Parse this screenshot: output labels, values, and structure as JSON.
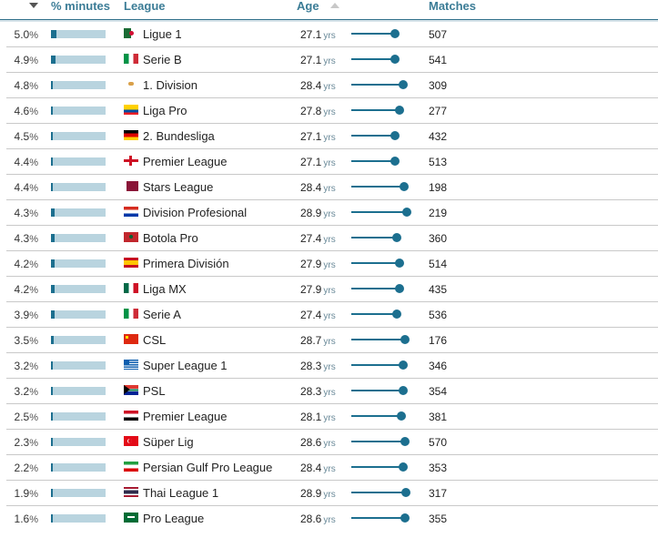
{
  "header": {
    "percent_minutes": "% minutes",
    "league": "League",
    "age": "Age",
    "matches": "Matches",
    "sort_desc_icon": "sort-desc-icon",
    "sort_asc_icon": "sort-asc-icon"
  },
  "colors": {
    "header_text": "#3b7c96",
    "bar_track": "#b9d4df",
    "bar_fill": "#1c6f8f",
    "slider": "#1c6f8f"
  },
  "unit_pct": "%",
  "unit_age": "yrs",
  "rows": [
    {
      "pct": "5.0",
      "fill": 6,
      "flag": "algeria-flag",
      "league": "Ligue 1",
      "age": "27.1",
      "slider": 48,
      "matches": "507"
    },
    {
      "pct": "4.9",
      "fill": 5,
      "flag": "italy-flag",
      "league": "Serie B",
      "age": "27.1",
      "slider": 48,
      "matches": "541"
    },
    {
      "pct": "4.8",
      "fill": 0,
      "flag": "cyprus-flag",
      "league": "1. Division",
      "age": "28.4",
      "slider": 57,
      "matches": "309"
    },
    {
      "pct": "4.6",
      "fill": 0,
      "flag": "ecuador-flag",
      "league": "Liga Pro",
      "age": "27.8",
      "slider": 53,
      "matches": "277"
    },
    {
      "pct": "4.5",
      "fill": 0,
      "flag": "germany-flag",
      "league": "2. Bundesliga",
      "age": "27.1",
      "slider": 48,
      "matches": "432"
    },
    {
      "pct": "4.4",
      "fill": 0,
      "flag": "england-flag",
      "league": "Premier League",
      "age": "27.1",
      "slider": 48,
      "matches": "513"
    },
    {
      "pct": "4.4",
      "fill": 0,
      "flag": "qatar-flag",
      "league": "Stars League",
      "age": "28.4",
      "slider": 58,
      "matches": "198"
    },
    {
      "pct": "4.3",
      "fill": 4,
      "flag": "paraguay-flag",
      "league": "Division Profesional",
      "age": "28.9",
      "slider": 61,
      "matches": "219"
    },
    {
      "pct": "4.3",
      "fill": 4,
      "flag": "morocco-flag",
      "league": "Botola Pro",
      "age": "27.4",
      "slider": 50,
      "matches": "360"
    },
    {
      "pct": "4.2",
      "fill": 4,
      "flag": "spain-flag",
      "league": "Primera División",
      "age": "27.9",
      "slider": 53,
      "matches": "514"
    },
    {
      "pct": "4.2",
      "fill": 4,
      "flag": "mexico-flag",
      "league": "Liga MX",
      "age": "27.9",
      "slider": 53,
      "matches": "435"
    },
    {
      "pct": "3.9",
      "fill": 4,
      "flag": "italy-flag",
      "league": "Serie A",
      "age": "27.4",
      "slider": 50,
      "matches": "536"
    },
    {
      "pct": "3.5",
      "fill": 3,
      "flag": "china-flag",
      "league": "CSL",
      "age": "28.7",
      "slider": 59,
      "matches": "176"
    },
    {
      "pct": "3.2",
      "fill": 2,
      "flag": "greece-flag",
      "league": "Super League 1",
      "age": "28.3",
      "slider": 57,
      "matches": "346"
    },
    {
      "pct": "3.2",
      "fill": 2,
      "flag": "south-africa-flag",
      "league": "PSL",
      "age": "28.3",
      "slider": 57,
      "matches": "354"
    },
    {
      "pct": "2.5",
      "fill": 2,
      "flag": "egypt-flag",
      "league": "Premier League",
      "age": "28.1",
      "slider": 55,
      "matches": "381"
    },
    {
      "pct": "2.3",
      "fill": 2,
      "flag": "turkey-flag",
      "league": "Süper Lig",
      "age": "28.6",
      "slider": 59,
      "matches": "570"
    },
    {
      "pct": "2.2",
      "fill": 2,
      "flag": "iran-flag",
      "league": "Persian Gulf Pro League",
      "age": "28.4",
      "slider": 57,
      "matches": "353"
    },
    {
      "pct": "1.9",
      "fill": 2,
      "flag": "thailand-flag",
      "league": "Thai League 1",
      "age": "28.9",
      "slider": 60,
      "matches": "317"
    },
    {
      "pct": "1.6",
      "fill": 2,
      "flag": "saudi-arabia-flag",
      "league": "Pro League",
      "age": "28.6",
      "slider": 59,
      "matches": "355"
    }
  ]
}
